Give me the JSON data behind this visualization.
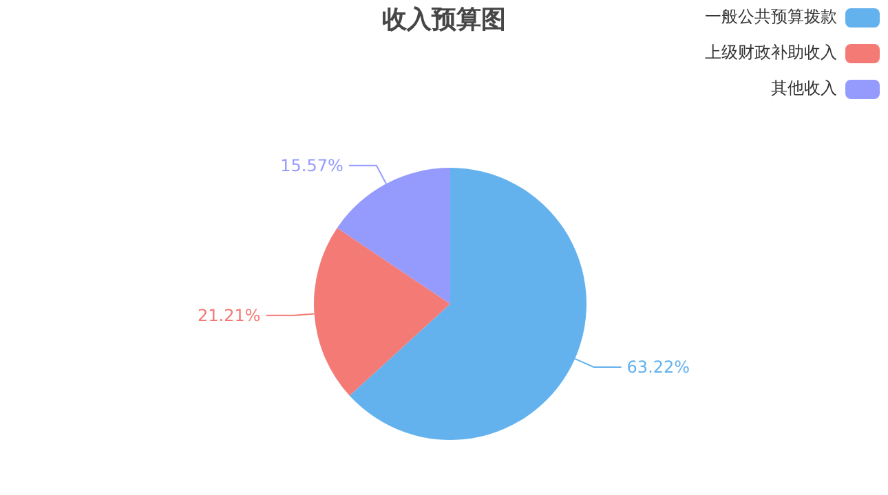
{
  "chart_data": {
    "type": "pie",
    "title": "收入预算图",
    "categories": [
      "一般公共预算拨款",
      "上级财政补助收入",
      "其他收入"
    ],
    "values": [
      63.22,
      21.21,
      15.57
    ],
    "colors": [
      "#63b2ee",
      "#f47a75",
      "#959bfd"
    ],
    "value_labels": [
      "63.22%",
      "21.21%",
      "15.57%"
    ],
    "legend": "top right"
  }
}
